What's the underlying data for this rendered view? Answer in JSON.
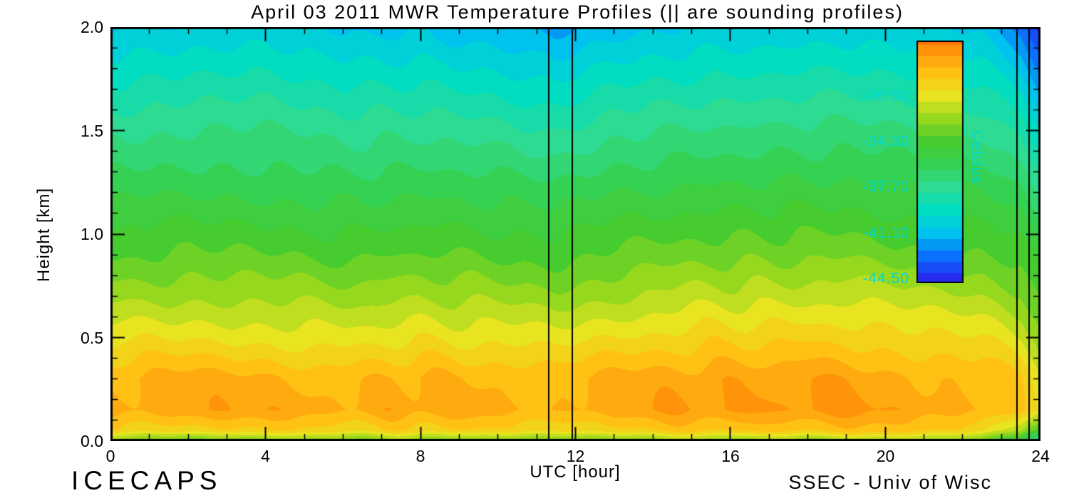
{
  "title": "April 03 2011 MWR Temperature Profiles (|| are sounding profiles)",
  "xlabel": "UTC [hour]",
  "ylabel": "Height [km]",
  "footer_left": "ICECAPS",
  "footer_right": "SSEC - Univ of Wisc",
  "axes": {
    "x_range": [
      0,
      24
    ],
    "x_tick_values": [
      0,
      4,
      8,
      12,
      16,
      20,
      24
    ],
    "x_tick_labels": [
      "0",
      "4",
      "8",
      "12",
      "16",
      "20",
      "24"
    ],
    "x_minor_step": 1,
    "y_range": [
      0,
      2
    ],
    "y_tick_values": [
      0.0,
      0.5,
      1.0,
      1.5,
      2.0
    ],
    "y_tick_labels": [
      "0.0",
      "0.5",
      "1.0",
      "1.5",
      "2.0"
    ],
    "y_minor_step": 0.1,
    "frame_color": "#000000"
  },
  "colorbar": {
    "label": "Celcius",
    "tick_labels": [
      "-27.50",
      "-30.90",
      "-34.30",
      "-37.70",
      "-41.10",
      "-44.50"
    ],
    "tick_values": [
      -27.5,
      -30.9,
      -34.3,
      -37.7,
      -41.1,
      -44.5
    ],
    "top_value": -26.8,
    "bottom_value": -44.8,
    "text_color": "#00d8d8"
  },
  "chart_data": {
    "type": "heatmap",
    "title": "April 03 2011 MWR Temperature Profiles (|| are sounding profiles)",
    "xlabel": "UTC [hour]",
    "ylabel": "Height [km]",
    "units": "Celcius",
    "x_hours": [
      0,
      2,
      4,
      6,
      8,
      10,
      11.5,
      13,
      15,
      17,
      19,
      21,
      22.5,
      23.5,
      24
    ],
    "y_heights_km": [
      0.0,
      0.05,
      0.15,
      0.3,
      0.5,
      0.7,
      0.9,
      1.1,
      1.3,
      1.5,
      1.7,
      1.85,
      2.0
    ],
    "temps_c": [
      [
        -33.2,
        -33.5,
        -33.2,
        -33.4,
        -33.0,
        -33.5,
        -33.3,
        -33.0,
        -32.8,
        -33.0,
        -32.6,
        -33.0,
        -33.4,
        -35.5,
        -38.5
      ],
      [
        -30.0,
        -29.8,
        -29.9,
        -30.1,
        -29.8,
        -30.0,
        -30.0,
        -29.7,
        -29.5,
        -29.4,
        -29.3,
        -29.6,
        -30.0,
        -32.0,
        -34.5
      ],
      [
        -28.4,
        -28.1,
        -28.3,
        -28.5,
        -28.2,
        -28.4,
        -28.6,
        -28.2,
        -27.9,
        -27.8,
        -27.7,
        -28.2,
        -28.4,
        -29.3,
        -30.8
      ],
      [
        -28.8,
        -28.5,
        -28.7,
        -29.0,
        -28.6,
        -28.8,
        -29.1,
        -28.6,
        -28.2,
        -28.1,
        -28.0,
        -28.6,
        -28.8,
        -29.7,
        -31.2
      ],
      [
        -30.8,
        -30.5,
        -30.7,
        -31.0,
        -30.6,
        -30.8,
        -31.1,
        -30.5,
        -30.0,
        -29.9,
        -29.8,
        -30.4,
        -30.6,
        -31.3,
        -32.5
      ],
      [
        -32.5,
        -32.3,
        -32.4,
        -32.6,
        -32.3,
        -32.5,
        -32.7,
        -32.2,
        -31.8,
        -31.7,
        -31.6,
        -32.0,
        -32.2,
        -32.8,
        -34.0
      ],
      [
        -34.0,
        -33.8,
        -33.9,
        -34.1,
        -33.8,
        -34.0,
        -34.2,
        -33.7,
        -33.4,
        -33.3,
        -33.2,
        -33.6,
        -33.7,
        -34.2,
        -35.4
      ],
      [
        -35.2,
        -35.0,
        -35.1,
        -35.3,
        -35.1,
        -35.2,
        -35.5,
        -35.0,
        -34.7,
        -34.6,
        -34.5,
        -34.9,
        -35.0,
        -35.6,
        -36.8
      ],
      [
        -36.4,
        -36.2,
        -36.3,
        -36.5,
        -36.3,
        -36.5,
        -36.8,
        -36.2,
        -36.0,
        -35.9,
        -35.8,
        -36.1,
        -36.2,
        -36.9,
        -38.0
      ],
      [
        -37.5,
        -37.3,
        -37.2,
        -37.6,
        -37.5,
        -37.8,
        -38.1,
        -37.5,
        -37.2,
        -37.1,
        -37.0,
        -37.2,
        -37.4,
        -38.3,
        -39.8
      ],
      [
        -38.8,
        -38.6,
        -38.4,
        -38.9,
        -38.8,
        -39.2,
        -39.6,
        -38.9,
        -38.6,
        -38.5,
        -38.3,
        -38.5,
        -38.8,
        -39.9,
        -41.8
      ],
      [
        -39.8,
        -39.6,
        -39.3,
        -39.9,
        -39.9,
        -40.3,
        -40.8,
        -40.0,
        -39.6,
        -39.5,
        -39.3,
        -39.5,
        -39.9,
        -41.3,
        -43.2
      ],
      [
        -40.8,
        -40.5,
        -40.2,
        -40.9,
        -40.9,
        -41.4,
        -41.9,
        -41.0,
        -40.6,
        -40.5,
        -40.3,
        -40.5,
        -41.0,
        -42.6,
        -44.6
      ]
    ],
    "sounding_hours": [
      11.3,
      11.9,
      23.4,
      23.7
    ],
    "contour_step_c": 0.85,
    "colormap": [
      [
        -46.0,
        "#4a00d0"
      ],
      [
        -44.8,
        "#2a20e8"
      ],
      [
        -43.0,
        "#0b66ff"
      ],
      [
        -41.1,
        "#00c2ee"
      ],
      [
        -39.4,
        "#00ddc0"
      ],
      [
        -37.7,
        "#2edb92"
      ],
      [
        -36.0,
        "#35d153"
      ],
      [
        -34.3,
        "#46cc2e"
      ],
      [
        -32.6,
        "#96d81e"
      ],
      [
        -30.9,
        "#e8e420"
      ],
      [
        -29.2,
        "#ffc214"
      ],
      [
        -27.5,
        "#ff940a"
      ],
      [
        -26.0,
        "#ff5e00"
      ]
    ]
  }
}
